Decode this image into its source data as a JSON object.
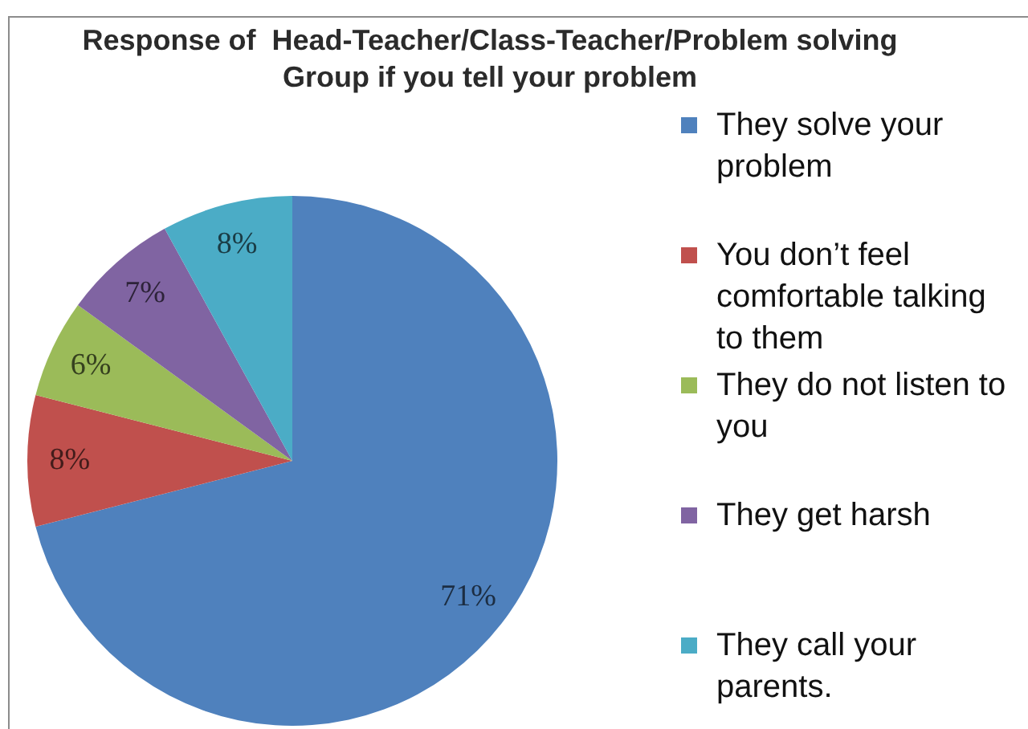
{
  "chart_data": {
    "type": "pie",
    "title": "Response of  Head-Teacher/Class-Teacher/Problem solving Group if you tell your problem",
    "categories": [
      "They solve your problem",
      "You don’t feel comfortable talking to them",
      "They do not listen to you",
      "They get harsh",
      "They call your parents."
    ],
    "values": [
      71,
      8,
      6,
      7,
      8
    ],
    "colors": [
      "#4f81bd",
      "#c0504d",
      "#9bbb59",
      "#8064a2",
      "#4bacc6"
    ],
    "value_labels": [
      "71%",
      "8%",
      "6%",
      "7%",
      "8%"
    ],
    "legend": "right"
  }
}
